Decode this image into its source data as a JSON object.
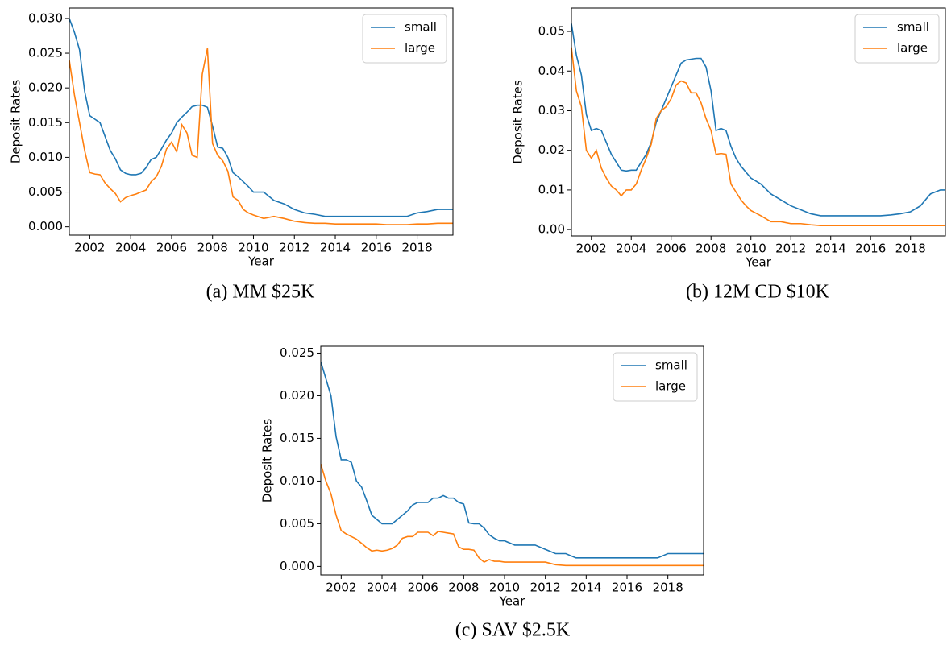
{
  "chart_data": [
    {
      "type": "line",
      "caption": "(a) MM $25K",
      "xlabel": "Year",
      "ylabel": "Deposit Rates",
      "legend": "upper right",
      "grid": false,
      "xlim": [
        2001,
        2019.75
      ],
      "ylim": [
        -0.0012,
        0.0315
      ],
      "xticks": [
        2002,
        2004,
        2006,
        2008,
        2010,
        2012,
        2014,
        2016,
        2018
      ],
      "yticks": [
        {
          "value": 0,
          "label": "0.000"
        },
        {
          "value": 0.005,
          "label": "0.005"
        },
        {
          "value": 0.01,
          "label": "0.010"
        },
        {
          "value": 0.015,
          "label": "0.015"
        },
        {
          "value": 0.02,
          "label": "0.020"
        },
        {
          "value": 0.025,
          "label": "0.025"
        },
        {
          "value": 0.03,
          "label": "0.030"
        }
      ],
      "x": [
        2001,
        2001.25,
        2001.5,
        2001.75,
        2002,
        2002.25,
        2002.5,
        2002.75,
        2003,
        2003.25,
        2003.5,
        2003.75,
        2004,
        2004.25,
        2004.5,
        2004.75,
        2005,
        2005.25,
        2005.5,
        2005.75,
        2006,
        2006.25,
        2006.5,
        2006.75,
        2007,
        2007.25,
        2007.5,
        2007.75,
        2008,
        2008.25,
        2008.5,
        2008.75,
        2009,
        2009.25,
        2009.5,
        2009.75,
        2010,
        2010.5,
        2011,
        2011.5,
        2012,
        2012.5,
        2013,
        2013.5,
        2014,
        2014.5,
        2015,
        2015.5,
        2016,
        2016.5,
        2017,
        2017.5,
        2018,
        2018.5,
        2019,
        2019.5,
        2019.75
      ],
      "series": [
        {
          "name": "small",
          "color": "#1f77b4",
          "values": [
            0.03,
            0.028,
            0.0255,
            0.0195,
            0.016,
            0.0155,
            0.015,
            0.013,
            0.011,
            0.0098,
            0.0082,
            0.0077,
            0.0075,
            0.0075,
            0.0077,
            0.0085,
            0.0097,
            0.01,
            0.0112,
            0.0125,
            0.0135,
            0.015,
            0.0158,
            0.0165,
            0.0173,
            0.0175,
            0.0175,
            0.0172,
            0.0145,
            0.0115,
            0.0113,
            0.01,
            0.0078,
            0.0072,
            0.0065,
            0.0058,
            0.005,
            0.005,
            0.0038,
            0.0033,
            0.0025,
            0.002,
            0.0018,
            0.0015,
            0.0015,
            0.0015,
            0.0015,
            0.0015,
            0.0015,
            0.0015,
            0.0015,
            0.0015,
            0.002,
            0.0022,
            0.0025,
            0.0025,
            0.0025
          ]
        },
        {
          "name": "large",
          "color": "#ff7f0e",
          "values": [
            0.024,
            0.019,
            0.015,
            0.011,
            0.0078,
            0.0076,
            0.0075,
            0.0063,
            0.0055,
            0.0048,
            0.0036,
            0.0042,
            0.0045,
            0.0047,
            0.005,
            0.0053,
            0.0065,
            0.0072,
            0.0087,
            0.0112,
            0.0122,
            0.0108,
            0.0147,
            0.0135,
            0.0103,
            0.01,
            0.022,
            0.0257,
            0.012,
            0.0103,
            0.0095,
            0.008,
            0.0043,
            0.0038,
            0.0025,
            0.002,
            0.0017,
            0.0012,
            0.0015,
            0.0012,
            0.0008,
            0.0006,
            0.0005,
            0.0005,
            0.0004,
            0.0004,
            0.0004,
            0.0004,
            0.0004,
            0.0003,
            0.0003,
            0.0003,
            0.0004,
            0.0004,
            0.0005,
            0.0005,
            0.0005
          ]
        }
      ]
    },
    {
      "type": "line",
      "caption": "(b) 12M CD $10K",
      "xlabel": "Year",
      "ylabel": "Deposit Rates",
      "legend": "upper right",
      "grid": false,
      "xlim": [
        2001,
        2019.75
      ],
      "ylim": [
        -0.0016,
        0.0559
      ],
      "xticks": [
        2002,
        2004,
        2006,
        2008,
        2010,
        2012,
        2014,
        2016,
        2018
      ],
      "yticks": [
        {
          "value": 0,
          "label": "0.00"
        },
        {
          "value": 0.01,
          "label": "0.01"
        },
        {
          "value": 0.02,
          "label": "0.02"
        },
        {
          "value": 0.03,
          "label": "0.03"
        },
        {
          "value": 0.04,
          "label": "0.04"
        },
        {
          "value": 0.05,
          "label": "0.05"
        }
      ],
      "x": [
        2001,
        2001.25,
        2001.5,
        2001.75,
        2002,
        2002.25,
        2002.5,
        2002.75,
        2003,
        2003.25,
        2003.5,
        2003.75,
        2004,
        2004.25,
        2004.5,
        2004.75,
        2005,
        2005.25,
        2005.5,
        2005.75,
        2006,
        2006.25,
        2006.5,
        2006.75,
        2007,
        2007.25,
        2007.5,
        2007.75,
        2008,
        2008.25,
        2008.5,
        2008.75,
        2009,
        2009.25,
        2009.5,
        2009.75,
        2010,
        2010.5,
        2011,
        2011.5,
        2012,
        2012.5,
        2013,
        2013.5,
        2014,
        2014.5,
        2015,
        2015.5,
        2016,
        2016.5,
        2017,
        2017.5,
        2018,
        2018.5,
        2019,
        2019.5,
        2019.75
      ],
      "series": [
        {
          "name": "small",
          "color": "#1f77b4",
          "values": [
            0.052,
            0.044,
            0.039,
            0.029,
            0.025,
            0.0255,
            0.025,
            0.022,
            0.019,
            0.017,
            0.015,
            0.0148,
            0.015,
            0.015,
            0.017,
            0.019,
            0.022,
            0.027,
            0.03,
            0.033,
            0.036,
            0.039,
            0.042,
            0.0428,
            0.043,
            0.0432,
            0.0432,
            0.041,
            0.035,
            0.025,
            0.0255,
            0.025,
            0.021,
            0.018,
            0.016,
            0.0145,
            0.013,
            0.0115,
            0.009,
            0.0075,
            0.006,
            0.005,
            0.004,
            0.0035,
            0.0035,
            0.0035,
            0.0035,
            0.0035,
            0.0035,
            0.0035,
            0.0037,
            0.004,
            0.0045,
            0.006,
            0.009,
            0.01,
            0.01
          ]
        },
        {
          "name": "large",
          "color": "#ff7f0e",
          "values": [
            0.046,
            0.035,
            0.031,
            0.02,
            0.018,
            0.02,
            0.0155,
            0.013,
            0.011,
            0.01,
            0.0085,
            0.01,
            0.01,
            0.0115,
            0.015,
            0.018,
            0.0215,
            0.028,
            0.03,
            0.031,
            0.033,
            0.0365,
            0.0375,
            0.037,
            0.0345,
            0.0345,
            0.032,
            0.028,
            0.025,
            0.019,
            0.0192,
            0.019,
            0.0115,
            0.0095,
            0.0075,
            0.006,
            0.0048,
            0.0035,
            0.002,
            0.002,
            0.0015,
            0.0015,
            0.0012,
            0.001,
            0.001,
            0.001,
            0.001,
            0.001,
            0.001,
            0.001,
            0.001,
            0.001,
            0.001,
            0.001,
            0.001,
            0.001,
            0.001
          ]
        }
      ]
    },
    {
      "type": "line",
      "caption": "(c) SAV $2.5K",
      "xlabel": "Year",
      "ylabel": "Deposit Rates",
      "legend": "upper right",
      "grid": false,
      "xlim": [
        2001,
        2019.75
      ],
      "ylim": [
        -0.001,
        0.0258
      ],
      "xticks": [
        2002,
        2004,
        2006,
        2008,
        2010,
        2012,
        2014,
        2016,
        2018
      ],
      "yticks": [
        {
          "value": 0,
          "label": "0.000"
        },
        {
          "value": 0.005,
          "label": "0.005"
        },
        {
          "value": 0.01,
          "label": "0.010"
        },
        {
          "value": 0.015,
          "label": "0.015"
        },
        {
          "value": 0.02,
          "label": "0.020"
        },
        {
          "value": 0.025,
          "label": "0.025"
        }
      ],
      "x": [
        2001,
        2001.25,
        2001.5,
        2001.75,
        2002,
        2002.25,
        2002.5,
        2002.75,
        2003,
        2003.25,
        2003.5,
        2003.75,
        2004,
        2004.25,
        2004.5,
        2004.75,
        2005,
        2005.25,
        2005.5,
        2005.75,
        2006,
        2006.25,
        2006.5,
        2006.75,
        2007,
        2007.25,
        2007.5,
        2007.75,
        2008,
        2008.25,
        2008.5,
        2008.75,
        2009,
        2009.25,
        2009.5,
        2009.75,
        2010,
        2010.5,
        2011,
        2011.5,
        2012,
        2012.5,
        2013,
        2013.5,
        2014,
        2014.5,
        2015,
        2015.5,
        2016,
        2016.5,
        2017,
        2017.5,
        2018,
        2018.5,
        2019,
        2019.5,
        2019.75
      ],
      "series": [
        {
          "name": "small",
          "color": "#1f77b4",
          "values": [
            0.024,
            0.022,
            0.02,
            0.0152,
            0.0125,
            0.0125,
            0.0122,
            0.01,
            0.0093,
            0.0077,
            0.006,
            0.0055,
            0.005,
            0.005,
            0.005,
            0.0055,
            0.006,
            0.0065,
            0.0072,
            0.0075,
            0.0075,
            0.0075,
            0.008,
            0.008,
            0.0083,
            0.008,
            0.008,
            0.0075,
            0.0073,
            0.0051,
            0.005,
            0.005,
            0.0045,
            0.0037,
            0.0033,
            0.003,
            0.003,
            0.0025,
            0.0025,
            0.0025,
            0.002,
            0.0015,
            0.0015,
            0.001,
            0.001,
            0.001,
            0.001,
            0.001,
            0.001,
            0.001,
            0.001,
            0.001,
            0.0015,
            0.0015,
            0.0015,
            0.0015,
            0.0015
          ]
        },
        {
          "name": "large",
          "color": "#ff7f0e",
          "values": [
            0.012,
            0.01,
            0.0085,
            0.006,
            0.0042,
            0.0038,
            0.0035,
            0.0032,
            0.0027,
            0.0022,
            0.0018,
            0.0019,
            0.0018,
            0.0019,
            0.0021,
            0.0025,
            0.0033,
            0.0035,
            0.0035,
            0.004,
            0.004,
            0.004,
            0.0036,
            0.0041,
            0.004,
            0.0039,
            0.0038,
            0.0023,
            0.002,
            0.002,
            0.0019,
            0.001,
            0.0005,
            0.0008,
            0.0006,
            0.0006,
            0.0005,
            0.0005,
            0.0005,
            0.0005,
            0.0005,
            0.0002,
            0.0001,
            0.0001,
            0.0001,
            0.0001,
            0.0001,
            0.0001,
            0.0001,
            0.0001,
            0.0001,
            0.0001,
            0.0001,
            0.0001,
            0.0001,
            0.0001,
            0.0001
          ]
        }
      ]
    }
  ]
}
